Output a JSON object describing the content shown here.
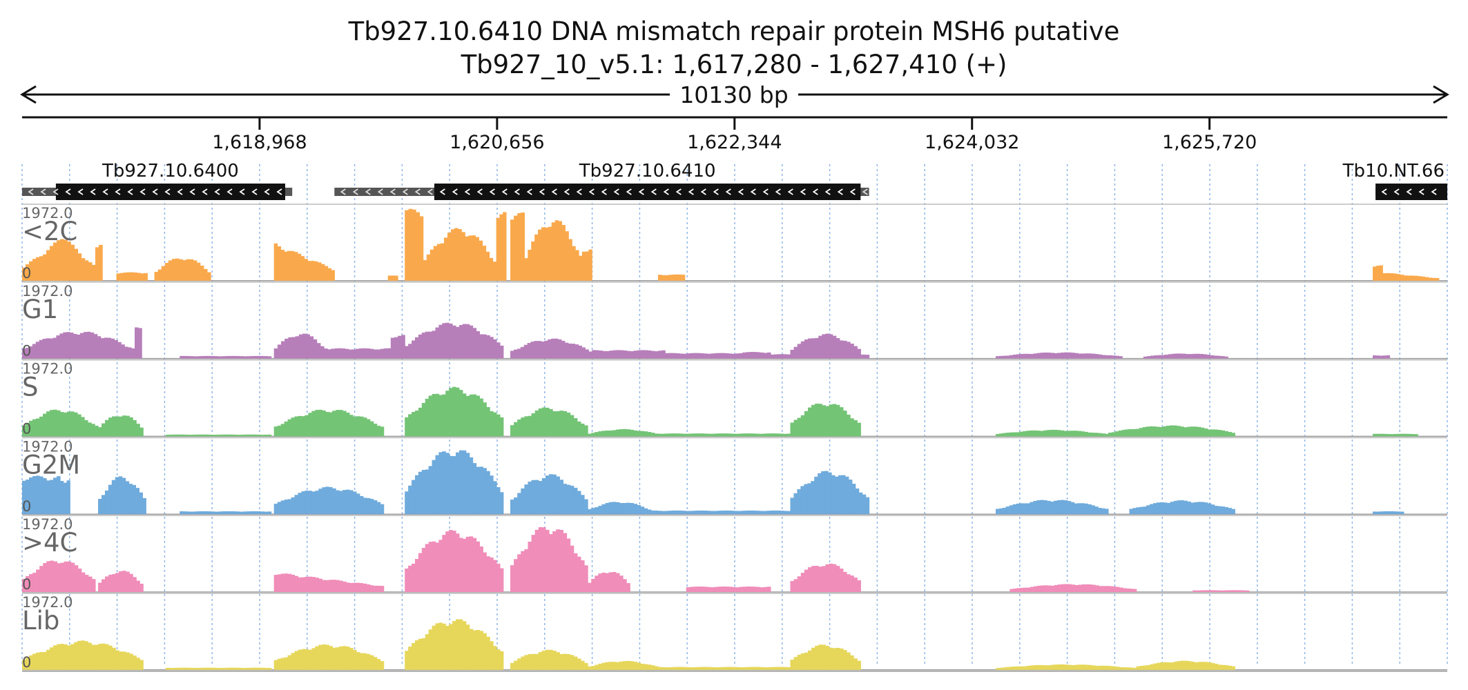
{
  "title": {
    "line1": "Tb927.10.6410  DNA mismatch repair protein MSH6  putative",
    "line2": "Tb927_10_v5.1: 1,617,280 - 1,627,410 (+)"
  },
  "chart_data": {
    "type": "area",
    "region": {
      "chrom": "Tb927_10_v5.1",
      "start": 1617280,
      "end": 1627410,
      "strand": "+"
    },
    "span_label": "10130 bp",
    "ticks": [
      {
        "pos": 1618968,
        "label": "1,618,968"
      },
      {
        "pos": 1620656,
        "label": "1,620,656"
      },
      {
        "pos": 1622344,
        "label": "1,622,344"
      },
      {
        "pos": 1624032,
        "label": "1,624,032"
      },
      {
        "pos": 1625720,
        "label": "1,625,720"
      }
    ],
    "genes": [
      {
        "name": "Tb927.10.6400",
        "start": 1617280,
        "end": 1619200,
        "cds_start": 1617520,
        "cds_end": 1619150,
        "strand": "-"
      },
      {
        "name": "Tb927.10.6410",
        "start": 1619500,
        "end": 1623300,
        "cds_start": 1620210,
        "cds_end": 1623240,
        "strand": "-"
      },
      {
        "name": "Tb10.NT.66",
        "start": 1626900,
        "end": 1627410,
        "cds_start": 1626900,
        "cds_end": 1627410,
        "strand": "-"
      }
    ],
    "y_max_label": "1972.0",
    "y_min_label": "0",
    "ylim": [
      0,
      1972
    ],
    "tracks": [
      {
        "name": "<2C",
        "color": "#f9a94c",
        "segments": [
          {
            "x": [
              1617280,
              1617550
            ],
            "peak": 1150,
            "shape": "rise"
          },
          {
            "x": [
              1617550,
              1617800
            ],
            "peak": 1300,
            "shape": "fall"
          },
          {
            "x": [
              1617800,
              1617850
            ],
            "peak": 1050,
            "shape": "flat"
          },
          {
            "x": [
              1617950,
              1618170
            ],
            "peak": 230,
            "shape": "flat"
          },
          {
            "x": [
              1618220,
              1618620
            ],
            "peak": 650,
            "shape": "hump"
          },
          {
            "x": [
              1619070,
              1619500
            ],
            "peak": 1050,
            "shape": "fall"
          },
          {
            "x": [
              1619880,
              1619950
            ],
            "peak": 140,
            "shape": "flat"
          },
          {
            "x": [
              1620000,
              1620130
            ],
            "peak": 1960,
            "shape": "flat"
          },
          {
            "x": [
              1620130,
              1620650
            ],
            "peak": 1450,
            "shape": "hump"
          },
          {
            "x": [
              1620650,
              1620720
            ],
            "peak": 1880,
            "shape": "flat"
          },
          {
            "x": [
              1620750,
              1620850
            ],
            "peak": 1860,
            "shape": "flat"
          },
          {
            "x": [
              1620850,
              1621260
            ],
            "peak": 1700,
            "shape": "hump"
          },
          {
            "x": [
              1621260,
              1621330
            ],
            "peak": 900,
            "shape": "flat"
          },
          {
            "x": [
              1621800,
              1621990
            ],
            "peak": 170,
            "shape": "flat"
          },
          {
            "x": [
              1626880,
              1626950
            ],
            "peak": 420,
            "shape": "flat"
          },
          {
            "x": [
              1626950,
              1627350
            ],
            "peak": 230,
            "shape": "fall"
          }
        ]
      },
      {
        "name": "G1",
        "color": "#b77fba",
        "segments": [
          {
            "x": [
              1617280,
              1618080
            ],
            "peak": 750,
            "shape": "hump"
          },
          {
            "x": [
              1618080,
              1618130
            ],
            "peak": 850,
            "shape": "flat"
          },
          {
            "x": [
              1618400,
              1619050
            ],
            "peak": 70,
            "shape": "flat"
          },
          {
            "x": [
              1619070,
              1619450
            ],
            "peak": 700,
            "shape": "hump"
          },
          {
            "x": [
              1619450,
              1619900
            ],
            "peak": 280,
            "shape": "flat"
          },
          {
            "x": [
              1619900,
              1620000
            ],
            "peak": 650,
            "shape": "flat"
          },
          {
            "x": [
              1620000,
              1620700
            ],
            "peak": 1000,
            "shape": "hump"
          },
          {
            "x": [
              1620750,
              1621330
            ],
            "peak": 550,
            "shape": "hump"
          },
          {
            "x": [
              1621330,
              1621850
            ],
            "peak": 230,
            "shape": "flat"
          },
          {
            "x": [
              1621850,
              1622400
            ],
            "peak": 150,
            "shape": "flat"
          },
          {
            "x": [
              1622400,
              1622600
            ],
            "peak": 180,
            "shape": "flat"
          },
          {
            "x": [
              1622600,
              1622740
            ],
            "peak": 120,
            "shape": "flat"
          },
          {
            "x": [
              1622740,
              1623240
            ],
            "peak": 680,
            "shape": "hump"
          },
          {
            "x": [
              1623240,
              1623300
            ],
            "peak": 120,
            "shape": "flat"
          },
          {
            "x": [
              1624200,
              1625100
            ],
            "peak": 170,
            "shape": "hump"
          },
          {
            "x": [
              1625250,
              1625850
            ],
            "peak": 140,
            "shape": "hump"
          },
          {
            "x": [
              1626880,
              1627000
            ],
            "peak": 90,
            "shape": "flat"
          }
        ]
      },
      {
        "name": "S",
        "color": "#74c476",
        "segments": [
          {
            "x": [
              1617280,
              1617820
            ],
            "peak": 750,
            "shape": "hump"
          },
          {
            "x": [
              1617820,
              1618140
            ],
            "peak": 620,
            "shape": "hump"
          },
          {
            "x": [
              1618300,
              1619050
            ],
            "peak": 50,
            "shape": "flat"
          },
          {
            "x": [
              1619070,
              1619850
            ],
            "peak": 750,
            "shape": "hump"
          },
          {
            "x": [
              1620000,
              1620700
            ],
            "peak": 1350,
            "shape": "hump"
          },
          {
            "x": [
              1620750,
              1621300
            ],
            "peak": 800,
            "shape": "hump"
          },
          {
            "x": [
              1621300,
              1621800
            ],
            "peak": 200,
            "shape": "hump"
          },
          {
            "x": [
              1621800,
              1622740
            ],
            "peak": 80,
            "shape": "flat"
          },
          {
            "x": [
              1622740,
              1623240
            ],
            "peak": 950,
            "shape": "hump"
          },
          {
            "x": [
              1624200,
              1625000
            ],
            "peak": 180,
            "shape": "hump"
          },
          {
            "x": [
              1625000,
              1625900
            ],
            "peak": 300,
            "shape": "hump"
          },
          {
            "x": [
              1626880,
              1627200
            ],
            "peak": 70,
            "shape": "flat"
          }
        ]
      },
      {
        "name": "G2M",
        "color": "#6fabdc",
        "segments": [
          {
            "x": [
              1617280,
              1617550
            ],
            "peak": 1050,
            "shape": "flat"
          },
          {
            "x": [
              1617550,
              1617620
            ],
            "peak": 1000,
            "shape": "flat"
          },
          {
            "x": [
              1617820,
              1618160
            ],
            "peak": 1050,
            "shape": "hump"
          },
          {
            "x": [
              1618400,
              1619050
            ],
            "peak": 80,
            "shape": "flat"
          },
          {
            "x": [
              1619070,
              1619850
            ],
            "peak": 750,
            "shape": "hump"
          },
          {
            "x": [
              1620000,
              1620700
            ],
            "peak": 1800,
            "shape": "hump"
          },
          {
            "x": [
              1620750,
              1621300
            ],
            "peak": 1100,
            "shape": "hump"
          },
          {
            "x": [
              1621300,
              1621750
            ],
            "peak": 350,
            "shape": "hump"
          },
          {
            "x": [
              1621750,
              1622740
            ],
            "peak": 100,
            "shape": "flat"
          },
          {
            "x": [
              1622740,
              1623300
            ],
            "peak": 1200,
            "shape": "hump"
          },
          {
            "x": [
              1624200,
              1625000
            ],
            "peak": 400,
            "shape": "hump"
          },
          {
            "x": [
              1625150,
              1625900
            ],
            "peak": 380,
            "shape": "hump"
          },
          {
            "x": [
              1626880,
              1627100
            ],
            "peak": 80,
            "shape": "flat"
          }
        ]
      },
      {
        "name": ">4C",
        "color": "#f08db9",
        "segments": [
          {
            "x": [
              1617280,
              1617800
            ],
            "peak": 900,
            "shape": "hump"
          },
          {
            "x": [
              1617820,
              1618140
            ],
            "peak": 600,
            "shape": "hump"
          },
          {
            "x": [
              1619070,
              1619850
            ],
            "peak": 550,
            "shape": "fall"
          },
          {
            "x": [
              1620000,
              1620700
            ],
            "peak": 1700,
            "shape": "hump"
          },
          {
            "x": [
              1620750,
              1621300
            ],
            "peak": 1850,
            "shape": "hump"
          },
          {
            "x": [
              1621300,
              1621600
            ],
            "peak": 600,
            "shape": "hump"
          },
          {
            "x": [
              1622000,
              1622600
            ],
            "peak": 150,
            "shape": "flat"
          },
          {
            "x": [
              1622740,
              1623240
            ],
            "peak": 800,
            "shape": "hump"
          },
          {
            "x": [
              1624300,
              1625200
            ],
            "peak": 220,
            "shape": "hump"
          },
          {
            "x": [
              1625600,
              1626000
            ],
            "peak": 50,
            "shape": "flat"
          }
        ]
      },
      {
        "name": "Lib",
        "color": "#e6d75b",
        "segments": [
          {
            "x": [
              1617280,
              1618140
            ],
            "peak": 800,
            "shape": "hump"
          },
          {
            "x": [
              1618300,
              1619050
            ],
            "peak": 60,
            "shape": "flat"
          },
          {
            "x": [
              1619070,
              1619850
            ],
            "peak": 700,
            "shape": "hump"
          },
          {
            "x": [
              1620000,
              1620700
            ],
            "peak": 1400,
            "shape": "hump"
          },
          {
            "x": [
              1620750,
              1621300
            ],
            "peak": 550,
            "shape": "hump"
          },
          {
            "x": [
              1621300,
              1621800
            ],
            "peak": 250,
            "shape": "hump"
          },
          {
            "x": [
              1621800,
              1622740
            ],
            "peak": 80,
            "shape": "flat"
          },
          {
            "x": [
              1622740,
              1623240
            ],
            "peak": 700,
            "shape": "hump"
          },
          {
            "x": [
              1624200,
              1625200
            ],
            "peak": 150,
            "shape": "hump"
          },
          {
            "x": [
              1625200,
              1625900
            ],
            "peak": 250,
            "shape": "hump"
          }
        ]
      }
    ]
  }
}
